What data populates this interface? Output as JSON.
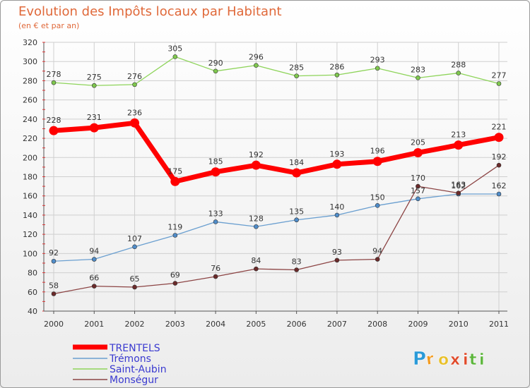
{
  "chart_data": {
    "type": "line",
    "title": "Evolution des Impôts locaux par Habitant",
    "subtitle": "(en € et par an)",
    "xlabel": "",
    "ylabel": "",
    "x": [
      "2000",
      "2001",
      "2002",
      "2003",
      "2004",
      "2005",
      "2006",
      "2007",
      "2008",
      "2009",
      "2010",
      "2011"
    ],
    "ylim": [
      40,
      320
    ],
    "yticks": [
      40,
      60,
      80,
      100,
      120,
      140,
      160,
      180,
      200,
      220,
      240,
      260,
      280,
      300,
      320
    ],
    "grid": true,
    "legend_position": "bottom-left",
    "series": [
      {
        "name": "Saint-Aubin",
        "color": "#8ed45a",
        "point_color": "#7fc84e",
        "values": [
          278,
          275,
          276,
          305,
          290,
          296,
          285,
          286,
          293,
          283,
          288,
          277
        ],
        "labels": [
          "278",
          "275",
          "276",
          "305",
          "290",
          "296",
          "285",
          "286",
          "293",
          "283",
          "288",
          "277"
        ]
      },
      {
        "name": "Trémons",
        "color": "#6a9fd0",
        "point_color": "#4f8cc9",
        "values": [
          92,
          94,
          107,
          119,
          133,
          128,
          135,
          140,
          150,
          157,
          162,
          162
        ],
        "labels": [
          "92",
          "94",
          "107",
          "119",
          "133",
          "128",
          "135",
          "140",
          "150",
          "157",
          "162",
          "162"
        ]
      },
      {
        "name": "Monségur",
        "color": "#8c4444",
        "point_color": "#6b2a2a",
        "values": [
          58,
          66,
          65,
          69,
          76,
          84,
          83,
          93,
          94,
          170,
          163,
          192
        ],
        "labels": [
          "58",
          "66",
          "65",
          "69",
          "76",
          "84",
          "83",
          "93",
          "94",
          "170",
          "163",
          "192"
        ]
      },
      {
        "name": "TRENTELS",
        "color": "#ff0000",
        "point_color": "#ff0000",
        "values": [
          228,
          231,
          236,
          175,
          185,
          192,
          184,
          193,
          196,
          205,
          213,
          221
        ],
        "labels": [
          "228",
          "231",
          "236",
          "175",
          "185",
          "192",
          "184",
          "193",
          "196",
          "205",
          "213",
          "221"
        ]
      }
    ],
    "legend": [
      "TRENTELS",
      "Trémons",
      "Saint-Aubin",
      "Monségur"
    ]
  },
  "brand": {
    "letters": [
      "P",
      "r",
      "o",
      "x",
      "i",
      "t",
      "i"
    ],
    "colors": [
      "#2a9ad8",
      "#f39a1e",
      "#e8c02a",
      "#e04a2a",
      "#e04a2a",
      "#5bb53a",
      "#5bb53a"
    ]
  },
  "colors": {
    "title": "#e0693a",
    "axis_text": "#333333",
    "grid": "#cfcfcf",
    "axis": "#555555",
    "tick_marks": "#dd3333"
  }
}
